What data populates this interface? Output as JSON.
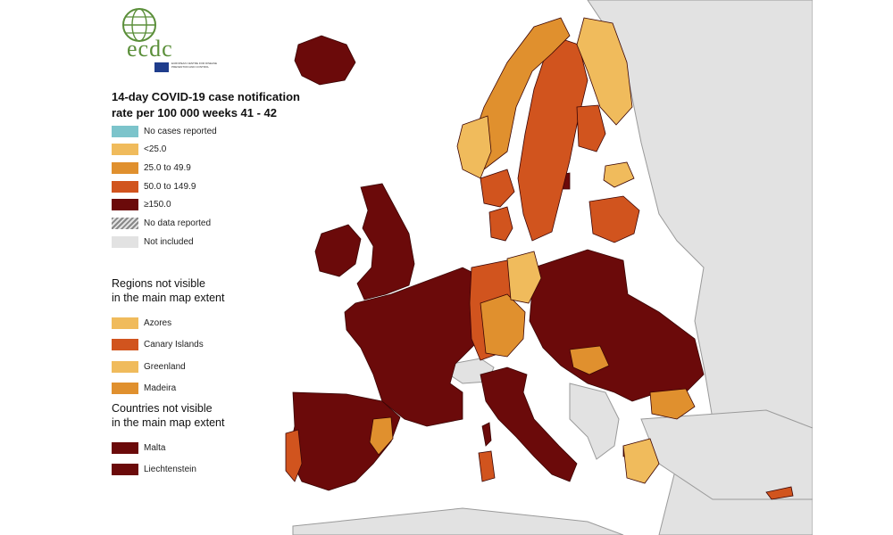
{
  "logo": {
    "text": "ecdc",
    "subtext": "EUROPEAN CENTRE FOR DISEASE PREVENTION AND CONTROL"
  },
  "legend": {
    "title_line1": "14-day COVID-19 case notification",
    "title_line2": "rate per 100 000 weeks 41 - 42",
    "categories": [
      {
        "label": "No cases reported",
        "color": "#7cc4cb"
      },
      {
        "label": "<25.0",
        "color": "#f0bb5c"
      },
      {
        "label": "25.0 to 49.9",
        "color": "#e0902e"
      },
      {
        "label": "50.0 to 149.9",
        "color": "#d1541e"
      },
      {
        "label": "≥150.0",
        "color": "#6b0a0a"
      },
      {
        "label": "No data reported",
        "color": "hatch"
      },
      {
        "label": "Not included",
        "color": "#e2e2e2"
      }
    ],
    "regions_title_line1": "Regions not visible",
    "regions_title_line2": "in the main map extent",
    "regions": [
      {
        "label": "Azores",
        "color": "#f0bb5c"
      },
      {
        "label": "Canary Islands",
        "color": "#d1541e"
      },
      {
        "label": "Greenland",
        "color": "#f0bb5c"
      },
      {
        "label": "Madeira",
        "color": "#e0902e"
      }
    ],
    "countries_title_line1": "Countries not visible",
    "countries_title_line2": "in the main map extent",
    "countries": [
      {
        "label": "Malta",
        "color": "#6b0a0a"
      },
      {
        "label": "Liechtenstein",
        "color": "#6b0a0a"
      }
    ]
  },
  "map": {
    "colors": {
      "sea": "#ffffff",
      "not_included": "#e2e2e2",
      "border": "#3a0404"
    }
  }
}
